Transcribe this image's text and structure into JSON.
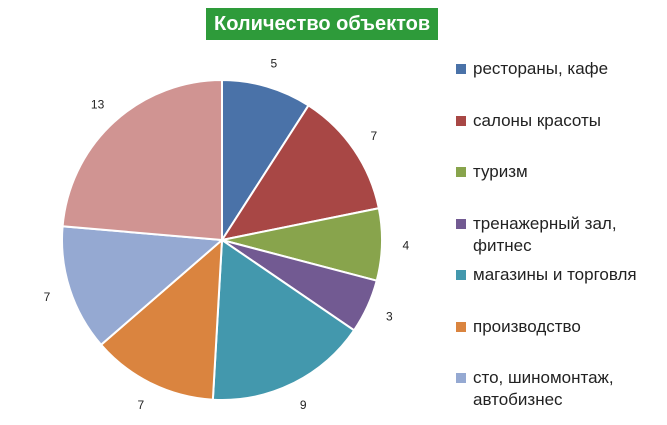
{
  "chart_data": {
    "type": "pie",
    "title": "Количество объектов",
    "title_bg": "#2e9b3a",
    "legend_position": "right",
    "slices": [
      {
        "label": "рестораны, кафе",
        "value": 5,
        "color": "#4a72a8"
      },
      {
        "label": "салоны красоты",
        "value": 7,
        "color": "#a84745"
      },
      {
        "label": "туризм",
        "value": 4,
        "color": "#88a44c"
      },
      {
        "label": "тренажерный зал, фитнес",
        "value": 3,
        "color": "#725a92"
      },
      {
        "label": "магазины и торговля",
        "value": 9,
        "color": "#4398ad"
      },
      {
        "label": "производство",
        "value": 7,
        "color": "#da843f"
      },
      {
        "label": "сто, шиномонтаж, автобизнес",
        "value": 7,
        "color": "#95a9d2"
      },
      {
        "label": "",
        "value": 13,
        "color": "#d09492"
      }
    ]
  }
}
